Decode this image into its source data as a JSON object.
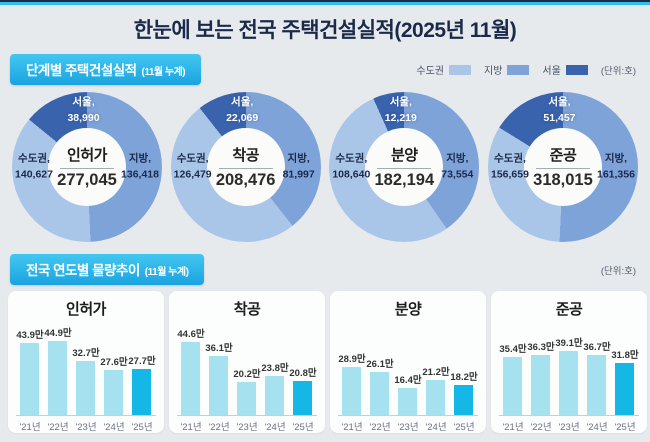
{
  "header": {
    "title": "한눈에 보는 전국 주택건설실적(2025년 11월)"
  },
  "colors": {
    "capital": "#a9c6e9",
    "regional": "#7ea3d9",
    "seoul": "#3a63ae",
    "bar_light": "#a5e1ef",
    "bar_highlight": "#14b7e5",
    "badge_top": "#43c7f1",
    "badge_bottom": "#1aa3e0",
    "background": "#e7eaed",
    "title_navy": "#1b2a4a"
  },
  "section_donuts": {
    "badge_title": "단계별 주택건설실적",
    "badge_note": "(11월 누계)",
    "unit_label": "(단위:호)",
    "legend": [
      {
        "label": "수도권",
        "key": "capital"
      },
      {
        "label": "지방",
        "key": "regional"
      },
      {
        "label": "서울",
        "key": "seoul"
      }
    ]
  },
  "section_bars": {
    "badge_title": "전국 연도별 물량추이",
    "badge_note": "(11월 누계)",
    "unit_label": "(단위:호)"
  },
  "chart_data": {
    "donuts": [
      {
        "type": "pie",
        "title": "인허가",
        "total": 277045,
        "total_label": "277,045",
        "segments": [
          {
            "label": "서울,",
            "value": 38990,
            "value_label": "38,990",
            "key": "seoul"
          },
          {
            "label": "수도권,",
            "value": 140627,
            "value_label": "140,627",
            "key": "capital"
          },
          {
            "label": "지방,",
            "value": 136418,
            "value_label": "136,418",
            "key": "regional"
          }
        ]
      },
      {
        "type": "pie",
        "title": "착공",
        "total": 208476,
        "total_label": "208,476",
        "segments": [
          {
            "label": "서울,",
            "value": 22069,
            "value_label": "22,069",
            "key": "seoul"
          },
          {
            "label": "수도권,",
            "value": 126479,
            "value_label": "126,479",
            "key": "capital"
          },
          {
            "label": "지방,",
            "value": 81997,
            "value_label": "81,997",
            "key": "regional"
          }
        ]
      },
      {
        "type": "pie",
        "title": "분양",
        "total": 182194,
        "total_label": "182,194",
        "segments": [
          {
            "label": "서울,",
            "value": 12219,
            "value_label": "12,219",
            "key": "seoul"
          },
          {
            "label": "수도권,",
            "value": 108640,
            "value_label": "108,640",
            "key": "capital"
          },
          {
            "label": "지방,",
            "value": 73554,
            "value_label": "73,554",
            "key": "regional"
          }
        ]
      },
      {
        "type": "pie",
        "title": "준공",
        "total": 318015,
        "total_label": "318,015",
        "segments": [
          {
            "label": "서울,",
            "value": 51457,
            "value_label": "51,457",
            "key": "seoul"
          },
          {
            "label": "수도권,",
            "value": 156659,
            "value_label": "156,659",
            "key": "capital"
          },
          {
            "label": "지방,",
            "value": 161356,
            "value_label": "161,356",
            "key": "regional"
          }
        ]
      }
    ],
    "bars": [
      {
        "type": "bar",
        "title": "인허가",
        "categories": [
          "'21년",
          "'22년",
          "'23년",
          "'24년",
          "'25년"
        ],
        "values": [
          43.9,
          44.9,
          32.7,
          27.6,
          27.7
        ],
        "value_labels": [
          "43.9만",
          "44.9만",
          "32.7만",
          "27.6만",
          "27.7만"
        ],
        "ylim": [
          0,
          45
        ],
        "highlight_index": 4
      },
      {
        "type": "bar",
        "title": "착공",
        "categories": [
          "'21년",
          "'22년",
          "'23년",
          "'24년",
          "'25년"
        ],
        "values": [
          44.6,
          36.1,
          20.2,
          23.8,
          20.8
        ],
        "value_labels": [
          "44.6만",
          "36.1만",
          "20.2만",
          "23.8만",
          "20.8만"
        ],
        "ylim": [
          0,
          45
        ],
        "highlight_index": 4
      },
      {
        "type": "bar",
        "title": "분양",
        "categories": [
          "'21년",
          "'22년",
          "'23년",
          "'24년",
          "'25년"
        ],
        "values": [
          28.9,
          26.1,
          16.4,
          21.2,
          18.2
        ],
        "value_labels": [
          "28.9만",
          "26.1만",
          "16.4만",
          "21.2만",
          "18.2만"
        ],
        "ylim": [
          0,
          45
        ],
        "highlight_index": 4
      },
      {
        "type": "bar",
        "title": "준공",
        "categories": [
          "'21년",
          "'22년",
          "'23년",
          "'24년",
          "'25년"
        ],
        "values": [
          35.4,
          36.3,
          39.1,
          36.7,
          31.8
        ],
        "value_labels": [
          "35.4만",
          "36.3만",
          "39.1만",
          "36.7만",
          "31.8만"
        ],
        "ylim": [
          0,
          45
        ],
        "highlight_index": 4
      }
    ]
  }
}
